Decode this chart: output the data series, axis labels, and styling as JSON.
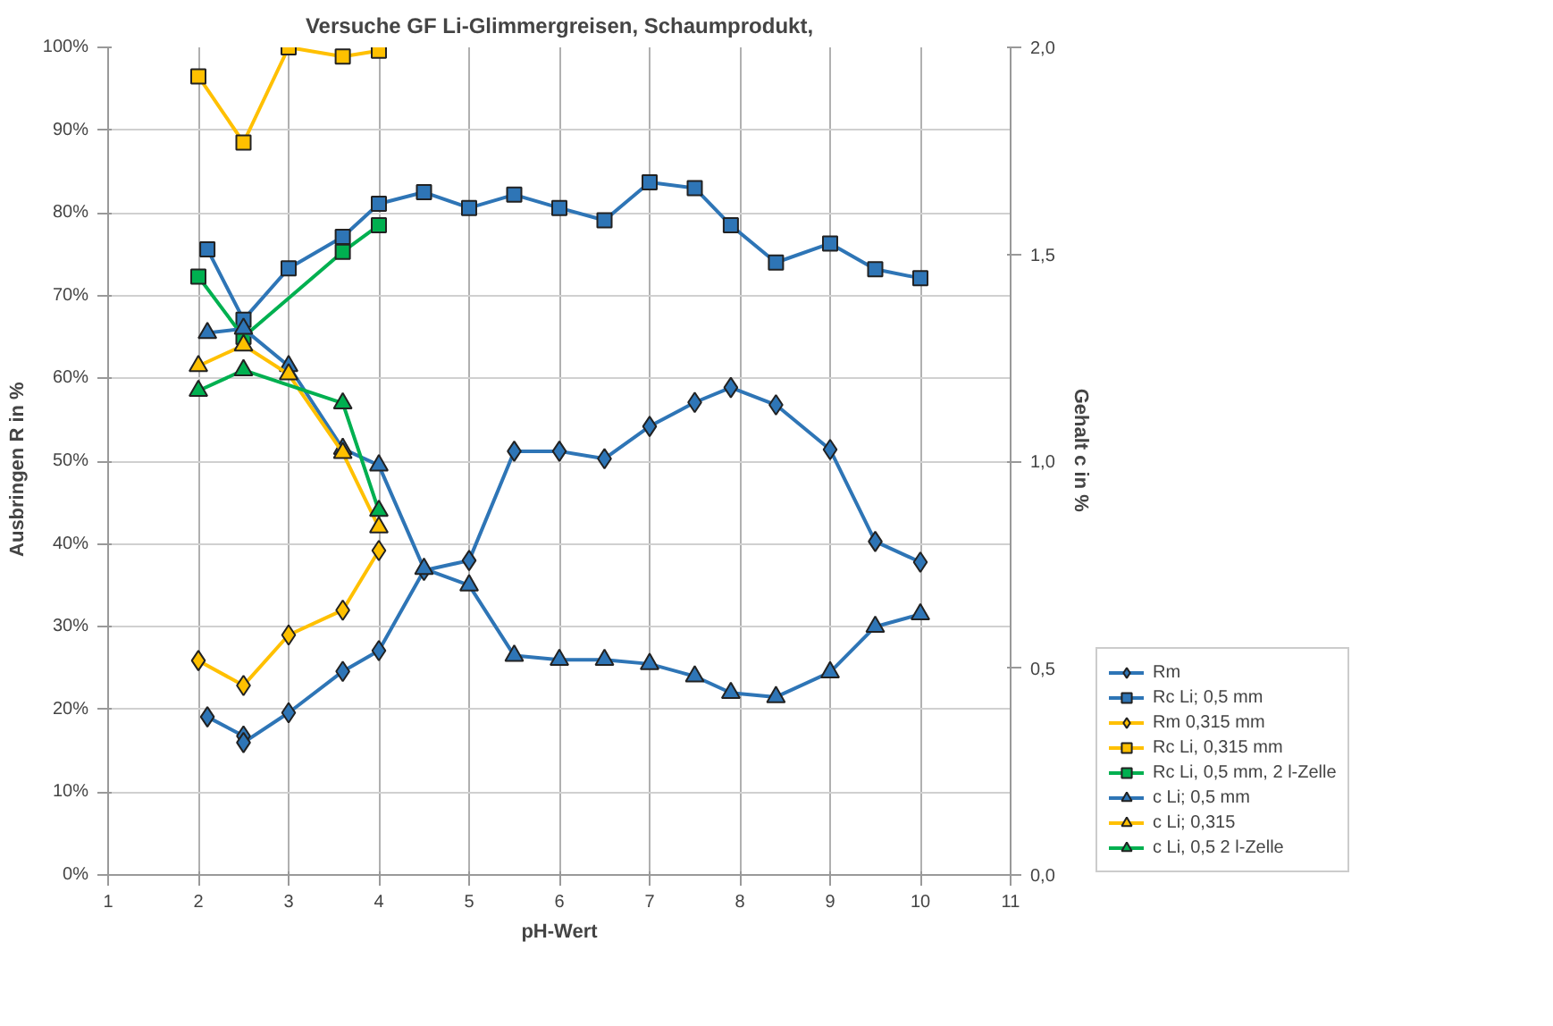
{
  "chart_data": {
    "type": "line",
    "title": "Versuche GF Li-Glimmergreisen, Schaumprodukt,",
    "xlabel": "pH-Wert",
    "ylabel": "Ausbringen    R in %",
    "y2label": "Gehalt    c  in %",
    "xlim": [
      1,
      11
    ],
    "xticks": [
      1,
      2,
      3,
      4,
      5,
      6,
      7,
      8,
      9,
      10,
      11
    ],
    "ylim": [
      0,
      100
    ],
    "yticks": [
      {
        "value": 0,
        "label": "0%"
      },
      {
        "value": 10,
        "label": "10%"
      },
      {
        "value": 20,
        "label": "20%"
      },
      {
        "value": 30,
        "label": "30%"
      },
      {
        "value": 40,
        "label": "40%"
      },
      {
        "value": 50,
        "label": "50%"
      },
      {
        "value": 60,
        "label": "60%"
      },
      {
        "value": 70,
        "label": "70%"
      },
      {
        "value": 80,
        "label": "80%"
      },
      {
        "value": 90,
        "label": "90%"
      },
      {
        "value": 100,
        "label": "100%"
      }
    ],
    "y2lim": [
      0,
      2
    ],
    "y2ticks": [
      {
        "value": 0,
        "label": "0,0"
      },
      {
        "value": 0.5,
        "label": "0,5"
      },
      {
        "value": 1,
        "label": "1,0"
      },
      {
        "value": 1.5,
        "label": "1,5"
      },
      {
        "value": 2,
        "label": "2,0"
      }
    ],
    "grid": true,
    "legend": "bottom right",
    "line_style": "solid",
    "series": [
      {
        "name": "Rm",
        "color": "#2e75b6",
        "marker": "diamond",
        "x": [
          2.1,
          2.5,
          2.5,
          3,
          3.6,
          4,
          4.5,
          5,
          5.5,
          6,
          6.5,
          7,
          7.5,
          7.9,
          8.4,
          9,
          9.5,
          10
        ],
        "values": [
          19.1,
          16.8,
          16.0,
          19.6,
          24.6,
          27.1,
          36.8,
          38.0,
          51.2,
          51.2,
          50.3,
          54.2,
          57.1,
          58.9,
          56.8,
          51.4,
          40.3,
          37.8
        ]
      },
      {
        "name": "Rc Li; 0,5 mm",
        "color": "#2e75b6",
        "marker": "square",
        "x": [
          2.1,
          2.5,
          3,
          3.6,
          4,
          4.5,
          5,
          5.5,
          6,
          6.5,
          7,
          7.5,
          7.9,
          8.4,
          9,
          9.5,
          10
        ],
        "values": [
          75.6,
          67.1,
          73.3,
          77.1,
          81.1,
          82.5,
          80.6,
          82.2,
          80.6,
          79.1,
          83.7,
          83.0,
          78.5,
          74.0,
          76.3,
          73.2,
          72.1
        ]
      },
      {
        "name": "Rm 0,315 mm",
        "color": "#ffc000",
        "marker": "diamond",
        "x": [
          2,
          2.5,
          3,
          3.6,
          4
        ],
        "values": [
          25.9,
          22.9,
          29.0,
          32.0,
          39.2
        ]
      },
      {
        "name": "Rc Li, 0,315 mm",
        "color": "#ffc000",
        "marker": "square",
        "x": [
          2,
          2.5,
          3,
          3.6,
          4
        ],
        "values": [
          96.5,
          88.5,
          100.0,
          98.9,
          99.6
        ]
      },
      {
        "name": "Rc Li, 0,5 mm, 2 l-Zelle",
        "color": "#00b050",
        "marker": "square",
        "x": [
          2,
          2.5,
          3.6,
          4
        ],
        "values": [
          72.3,
          65.0,
          75.3,
          78.5
        ]
      },
      {
        "name": "c Li; 0,5 mm",
        "color": "#2e75b6",
        "marker": "triangle",
        "axis": "y2",
        "x": [
          2.1,
          2.5,
          3,
          3.6,
          4,
          4.5,
          5,
          5.5,
          6,
          6.5,
          7,
          7.5,
          7.9,
          8.4,
          9,
          9.5,
          10
        ],
        "values": [
          1.31,
          1.32,
          1.23,
          1.03,
          0.99,
          0.74,
          0.7,
          0.53,
          0.52,
          0.52,
          0.51,
          0.48,
          0.44,
          0.43,
          0.49,
          0.6,
          0.63
        ]
      },
      {
        "name": "c Li; 0,315",
        "color": "#ffc000",
        "marker": "triangle",
        "axis": "y2",
        "x": [
          2,
          2.5,
          3,
          3.6,
          4
        ],
        "values": [
          1.23,
          1.28,
          1.21,
          1.02,
          0.84
        ]
      },
      {
        "name": "c Li, 0,5 2 l-Zelle",
        "color": "#00b050",
        "marker": "triangle",
        "axis": "y2",
        "x": [
          2,
          2.5,
          3.6,
          4
        ],
        "values": [
          1.17,
          1.22,
          1.14,
          0.88
        ]
      }
    ]
  }
}
